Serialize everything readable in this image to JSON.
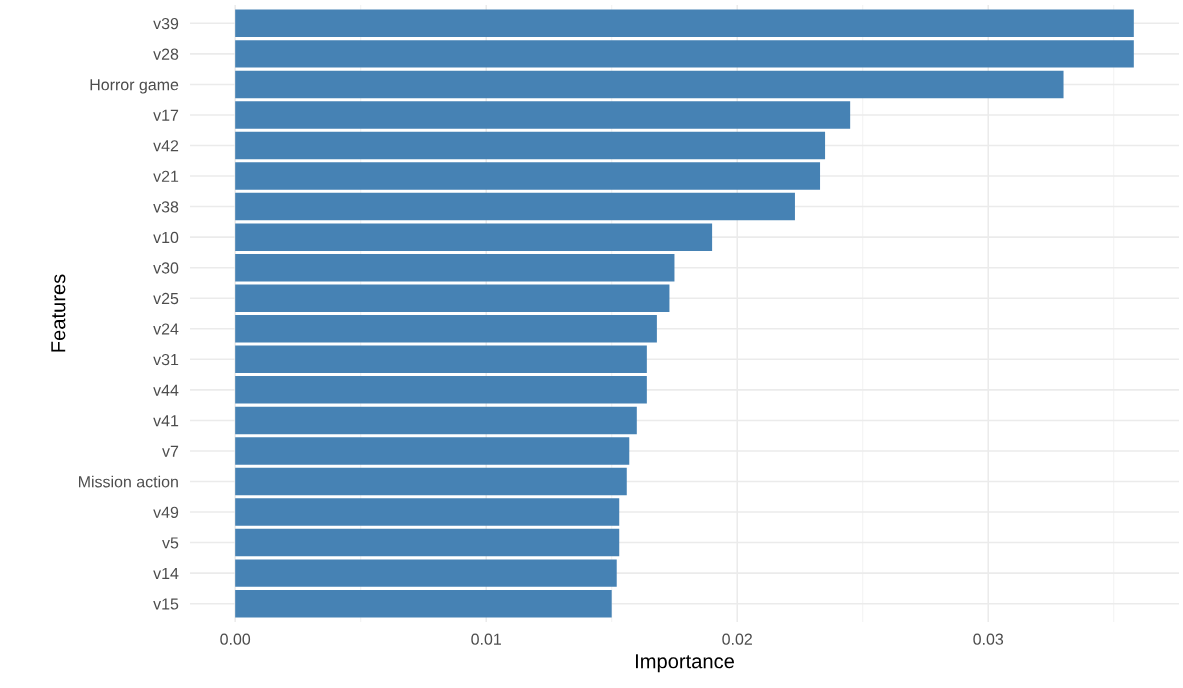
{
  "chart_data": {
    "type": "bar",
    "orientation": "horizontal",
    "xlabel": "Importance",
    "ylabel": "Features",
    "categories": [
      "v39",
      "v28",
      "Horror game",
      "v17",
      "v42",
      "v21",
      "v38",
      "v10",
      "v30",
      "v25",
      "v24",
      "v31",
      "v44",
      "v41",
      "v7",
      "Mission action",
      "v49",
      "v5",
      "v14",
      "v15"
    ],
    "values": [
      0.0358,
      0.0358,
      0.033,
      0.0245,
      0.0235,
      0.0233,
      0.0223,
      0.019,
      0.0175,
      0.0173,
      0.0168,
      0.0164,
      0.0164,
      0.016,
      0.0157,
      0.0156,
      0.0153,
      0.0153,
      0.0152,
      0.015
    ],
    "color": "#4682b4",
    "xlim": [
      -0.0018,
      0.0376
    ],
    "xticks": [
      {
        "value": 0,
        "label": "0.00"
      },
      {
        "value": 0.01,
        "label": "0.01"
      },
      {
        "value": 0.02,
        "label": "0.02"
      },
      {
        "value": 0.03,
        "label": "0.03"
      }
    ],
    "grid": true
  }
}
